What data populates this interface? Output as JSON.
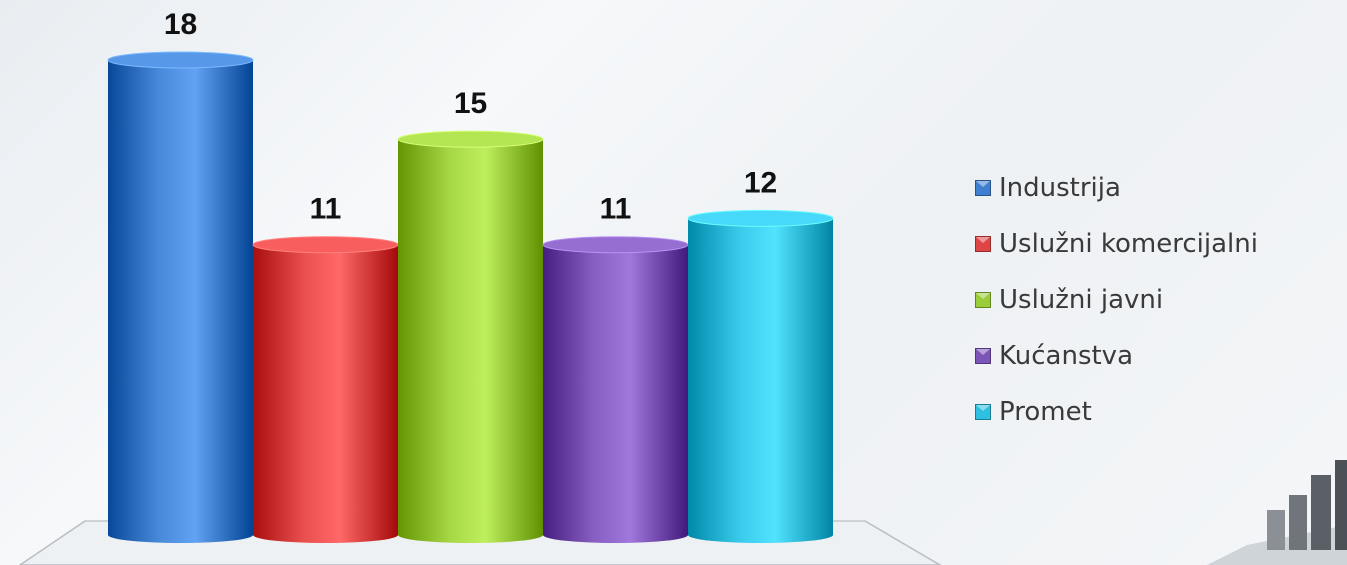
{
  "chart_data": {
    "type": "bar",
    "style": "3d-cylinder",
    "categories": [
      "Industrija",
      "Uslužni komercijalni",
      "Uslužni javni",
      "Kućanstva",
      "Promet"
    ],
    "values": [
      18,
      11,
      15,
      11,
      12
    ],
    "colors": [
      "#3f7fd0",
      "#e04545",
      "#9bcc3a",
      "#7d55b8",
      "#2ec0e0"
    ],
    "data_labels": [
      "18",
      "11",
      "15",
      "11",
      "12"
    ],
    "legend_position": "right",
    "grid": false,
    "ylim": [
      0,
      18
    ]
  },
  "legend": {
    "items": [
      {
        "label": "Industrija",
        "color": "#3f7fd0"
      },
      {
        "label": "Uslužni komercijalni",
        "color": "#e04545"
      },
      {
        "label": "Uslužni javni",
        "color": "#9bcc3a"
      },
      {
        "label": "Kućanstva",
        "color": "#7d55b8"
      },
      {
        "label": "Promet",
        "color": "#2ec0e0"
      }
    ]
  },
  "decoration": {
    "icon": "bar-chart-icon"
  }
}
